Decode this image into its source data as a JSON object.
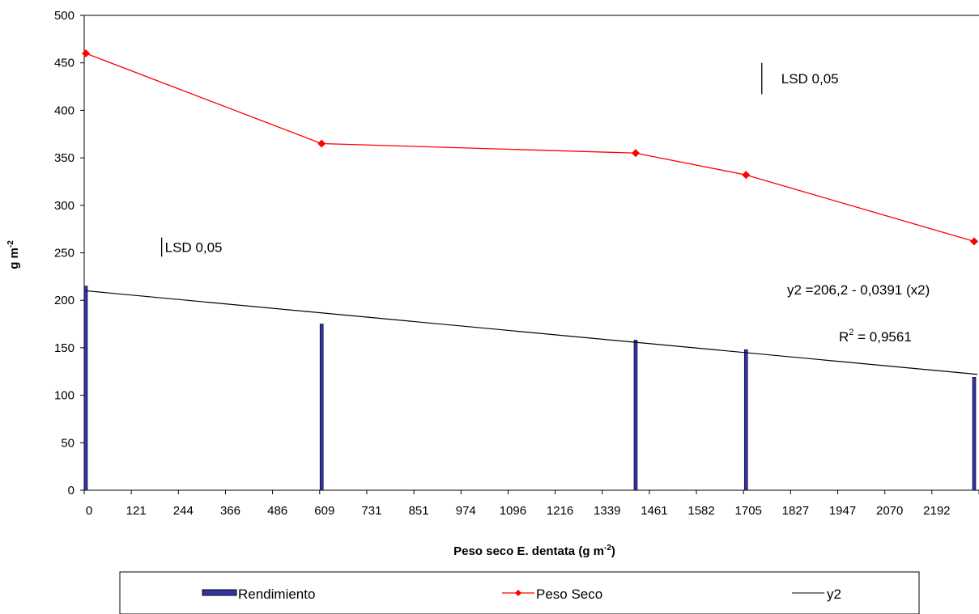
{
  "chart_data": {
    "type": "bar+line",
    "xlabel": {
      "text": "Peso seco E. dentata (g m",
      "sup": "-2",
      "close": ")"
    },
    "ylabel": {
      "text": "g m",
      "sup": "-2"
    },
    "x_ticks": [
      "0",
      "121",
      "244",
      "366",
      "486",
      "609",
      "731",
      "851",
      "974",
      "1096",
      "1216",
      "1339",
      "1461",
      "1582",
      "1705",
      "1827",
      "1947",
      "2070",
      "2192"
    ],
    "x_range": [
      0,
      2311
    ],
    "ylim": [
      0,
      500
    ],
    "y_ticks": [
      0,
      50,
      100,
      150,
      200,
      250,
      300,
      350,
      400,
      450,
      500
    ],
    "legend_position": "bottom",
    "series": [
      {
        "name": "Rendimiento",
        "type": "bar",
        "color": "#3333aa",
        "x": [
          0,
          609,
          1420,
          1705,
          2311
        ],
        "values": [
          215,
          175,
          158,
          148,
          119
        ]
      },
      {
        "name": "Peso Seco",
        "type": "line",
        "color": "#ff0000",
        "marker": "diamond",
        "x": [
          0,
          609,
          1420,
          1705,
          2311
        ],
        "values": [
          460,
          365,
          355,
          332,
          262
        ]
      },
      {
        "name": "y2",
        "type": "line",
        "color": "#000000",
        "x": [
          0,
          2311
        ],
        "values": [
          210,
          122
        ]
      }
    ],
    "lsd": [
      {
        "label": "LSD 0,05",
        "x": 200,
        "y_from": 246,
        "y_to": 266
      },
      {
        "label": "LSD 0,05",
        "x": 1750,
        "y_from": 417,
        "y_to": 450
      }
    ],
    "equation": "y2 =206,2 - 0,0391 (x2)",
    "r2": {
      "label": "R",
      "sup": "2",
      "value": " = 0,9561"
    }
  }
}
